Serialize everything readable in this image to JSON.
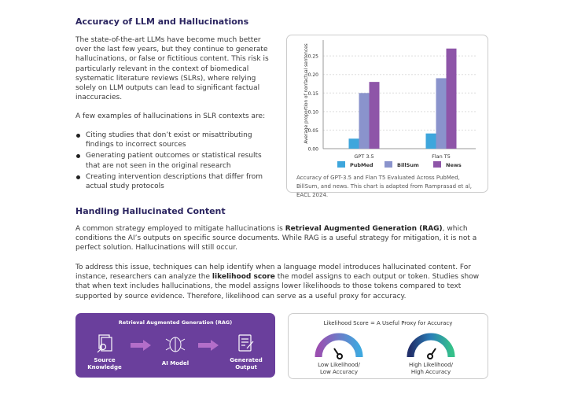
{
  "section1": {
    "title": "Accuracy of LLM and Hallucinations",
    "paragraph": "The state-of-the-art LLMs have become much better over the last few years, but they continue to generate hallucinations, or false or fictitious content. This risk is particularly relevant in the context of biomedical systematic literature reviews (SLRs), where relying solely on LLM outputs can lead to significant factual inaccuracies.",
    "list_intro": "A few examples of hallucinations in SLR contexts are:",
    "bullets": [
      "Citing studies that don’t exist or misattributing findings to incorrect sources",
      "Generating patient outcomes or statistical results that are not seen in the original research",
      "Creating intervention descriptions that differ from actual study protocols"
    ]
  },
  "chart_data": {
    "type": "bar",
    "categories": [
      "GPT 3.5",
      "Flan T5"
    ],
    "series": [
      {
        "name": "PubMed",
        "values": [
          0.027,
          0.041
        ],
        "color": "#3ea6dc"
      },
      {
        "name": "BillSum",
        "values": [
          0.15,
          0.19
        ],
        "color": "#8a93cc"
      },
      {
        "name": "News",
        "values": [
          0.18,
          0.27
        ],
        "color": "#8e55a8"
      }
    ],
    "ylabel": "Average proportion of nonfactual sentences",
    "ylim": [
      0,
      0.28
    ],
    "yticks": [
      "0.00",
      "0.05",
      "0.10",
      "0.15",
      "0.20",
      "0.25"
    ],
    "grid": true,
    "legend": "bottom",
    "caption": "Accuracy of GPT-3.5 and Flan T5 Evaluated Across PubMed, BillSum, and news. This chart is adapted from Ramprasad et al, EACL 2024."
  },
  "section2": {
    "title": "Handling Hallucinated Content",
    "p1_a": "A common strategy employed to mitigate hallucinations is ",
    "p1_bold": "Retrieval Augmented Generation (RAG)",
    "p1_b": ", which conditions the AI’s outputs on specific source documents. While RAG is a useful strategy for mitigation, it is not a perfect solution. Hallucinations will still occur.",
    "p2_a": "To address this issue, techniques can help identify when a language model introduces hallucinated content. For instance, researchers can analyze the ",
    "p2_bold": "likelihood score",
    "p2_b": " the model assigns to each output or token. Studies show that when text includes hallucinations, the model assigns lower likelihoods to those tokens compared to text supported by source evidence. Therefore, likelihood can serve as a useful proxy for accuracy."
  },
  "rag": {
    "title": "Retrieval Augmented Generation (RAG)",
    "steps": [
      "Source Knowledge",
      "AI Model",
      "Generated Output"
    ],
    "color": "#6a3f9c"
  },
  "likelihood": {
    "title": "Likelihood Score = A Useful Proxy for Accuracy",
    "gauges": [
      {
        "label": "Low Likelihood/ Low Accuracy",
        "level": 0.25
      },
      {
        "label": "High Likelihood/ High Accuracy",
        "level": 0.75
      }
    ]
  }
}
